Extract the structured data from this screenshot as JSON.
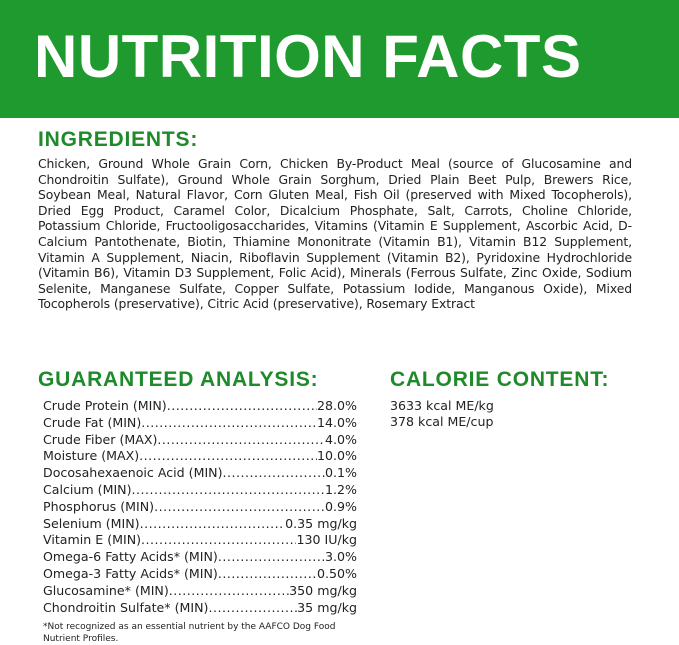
{
  "title": "NUTRITION FACTS",
  "ingredients": {
    "heading": "INGREDIENTS:",
    "text": "Chicken, Ground Whole Grain Corn, Chicken By-Product Meal (source of Glucosamine and Chondroitin Sulfate), Ground Whole Grain Sorghum, Dried Plain Beet Pulp, Brewers Rice, Soybean Meal, Natural Flavor, Corn Gluten Meal, Fish Oil (preserved with Mixed Tocopherols), Dried Egg Product, Caramel Color, Dicalcium Phosphate, Salt, Carrots, Choline Chloride, Potassium Chloride, Fructooligosaccharides, Vitamins (Vitamin E Supplement, Ascorbic Acid, D-Calcium Pantothenate, Biotin, Thiamine Mononitrate (Vitamin B1), Vitamin B12 Supplement, Vitamin A Supplement, Niacin, Riboflavin Supplement (Vitamin B2), Pyridoxine Hydrochloride (Vitamin B6), Vitamin D3 Supplement, Folic Acid), Minerals (Ferrous Sulfate, Zinc Oxide, Sodium Selenite, Manganese Sulfate, Copper Sulfate, Potassium Iodide, Manganous Oxide), Mixed Tocopherols (preservative), Citric Acid (preservative), Rosemary Extract"
  },
  "analysis": {
    "heading": "GUARANTEED ANALYSIS:",
    "rows": [
      {
        "label": "Crude Protein (MIN)",
        "value": " 28.0%"
      },
      {
        "label": "Crude Fat (MIN)",
        "value": "14.0%"
      },
      {
        "label": "Crude Fiber (MAX)",
        "value": " 4.0%"
      },
      {
        "label": "Moisture (MAX)",
        "value": "10.0%"
      },
      {
        "label": "Docosahexaenoic Acid (MIN)",
        "value": " 0.1%"
      },
      {
        "label": "Calcium (MIN)",
        "value": "1.2%"
      },
      {
        "label": "Phosphorus (MIN)",
        "value": "0.9%"
      },
      {
        "label": "Selenium (MIN)",
        "value": "0.35 mg/kg"
      },
      {
        "label": "Vitamin E (MIN)",
        "value": "130 IU/kg"
      },
      {
        "label": "Omega-6 Fatty Acids* (MIN)",
        "value": " 3.0%"
      },
      {
        "label": "Omega-3 Fatty Acids* (MIN)",
        "value": "0.50%"
      },
      {
        "label": "Glucosamine* (MIN)",
        "value": "350 mg/kg"
      },
      {
        "label": "Chondroitin Sulfate* (MIN)",
        "value": "35 mg/kg"
      }
    ],
    "footnote": "*Not recognized as an essential nutrient by the AAFCO Dog Food Nutrient Profiles."
  },
  "calorie": {
    "heading": "CALORIE CONTENT:",
    "lines": [
      "3633 kcal ME/kg",
      "378 kcal ME/cup"
    ]
  },
  "colors": {
    "brand_green": "#1f9a2e",
    "heading_green": "#1e8a2a"
  }
}
